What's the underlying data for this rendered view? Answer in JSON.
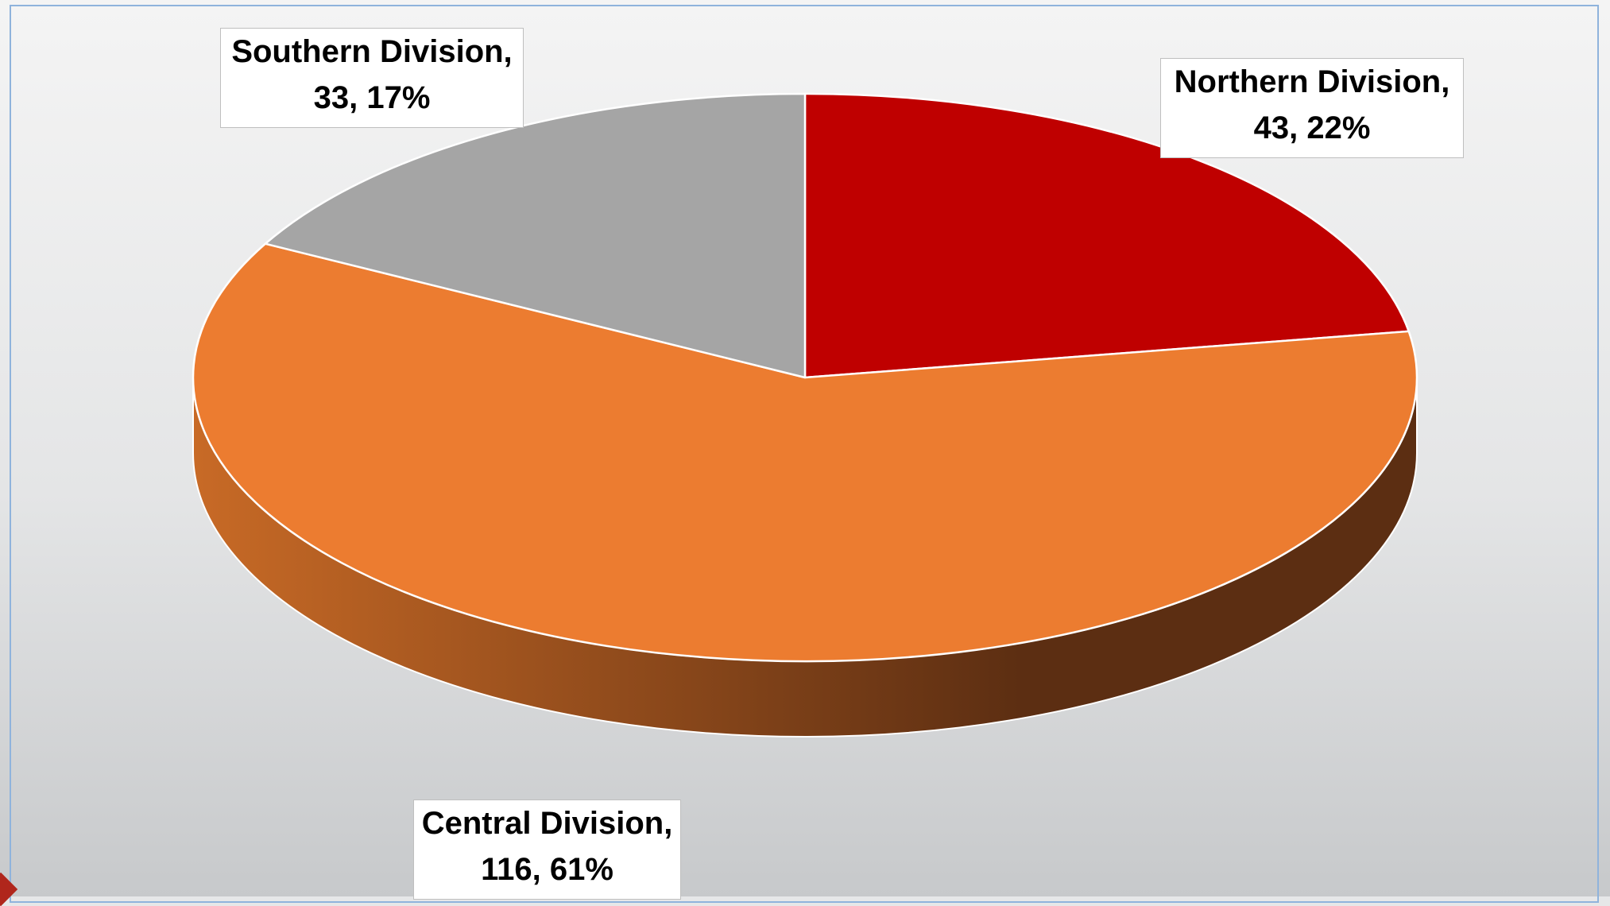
{
  "chart_data": {
    "type": "pie",
    "three_d": true,
    "categories": [
      "Northern Division",
      "Central Division",
      "Southern Division"
    ],
    "values": [
      43,
      116,
      33
    ],
    "percentages": [
      22,
      61,
      17
    ],
    "colors": [
      "#bf0000",
      "#ec7c30",
      "#a5a5a5"
    ],
    "side_colors": {
      "light": "#c86a26",
      "dark": "#5c2e12"
    },
    "labels": [
      {
        "line1": "Northern Division,",
        "line2": "43, 22%"
      },
      {
        "line1": "Central Division,",
        "line2": "116, 61%"
      },
      {
        "line1": "Southern Division,",
        "line2": "33, 17%"
      }
    ]
  }
}
